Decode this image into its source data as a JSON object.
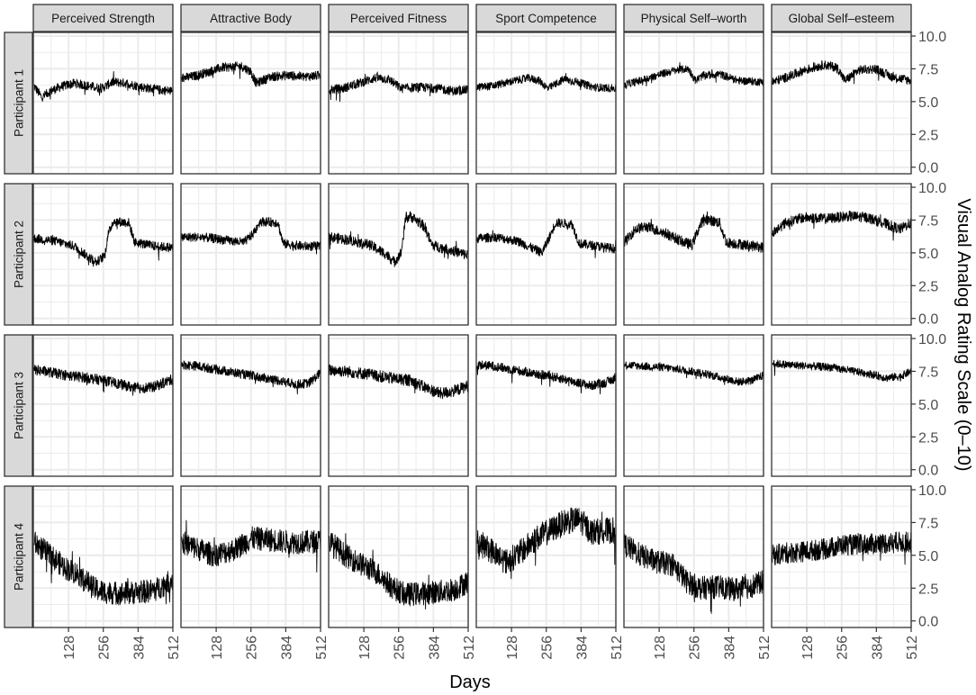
{
  "chart_data": {
    "type": "line",
    "xlabel": "Days",
    "ylabel": "Visual Analog Rating Scale (0–10)",
    "xlim": [
      1,
      512
    ],
    "ylim": [
      0,
      10
    ],
    "x_ticks": [
      "128",
      "256",
      "384",
      "512"
    ],
    "y_ticks": [
      "0.0",
      "2.5",
      "5.0",
      "7.5",
      "10.0"
    ],
    "grid": true,
    "legend": "none",
    "columns": [
      "Perceived Strength",
      "Attractive Body",
      "Perceived Fitness",
      "Sport Competence",
      "Physical Self–worth",
      "Global Self–esteem"
    ],
    "rows": [
      "Participant 1",
      "Participant 2",
      "Participant 3",
      "Participant 4"
    ],
    "line_color": "#000000",
    "strip_fill": "#d9d9d9",
    "grid_color": "#ebebeb",
    "series_note": "Daily ratings; each panel is a series approximated by anchor points (day, value) plus noise amplitude.",
    "panels": [
      {
        "row": "Participant 1",
        "column": "Perceived Strength",
        "noise": 0.35,
        "anchors": [
          [
            1,
            6.2
          ],
          [
            30,
            5.3
          ],
          [
            60,
            5.8
          ],
          [
            110,
            6.2
          ],
          [
            150,
            6.4
          ],
          [
            200,
            6.2
          ],
          [
            250,
            6.0
          ],
          [
            290,
            6.5
          ],
          [
            340,
            6.4
          ],
          [
            400,
            6.1
          ],
          [
            460,
            5.9
          ],
          [
            512,
            5.8
          ]
        ]
      },
      {
        "row": "Participant 1",
        "column": "Attractive Body",
        "noise": 0.35,
        "anchors": [
          [
            1,
            6.8
          ],
          [
            40,
            6.9
          ],
          [
            90,
            7.2
          ],
          [
            150,
            7.6
          ],
          [
            220,
            7.7
          ],
          [
            255,
            7.3
          ],
          [
            275,
            6.4
          ],
          [
            330,
            6.9
          ],
          [
            390,
            7.0
          ],
          [
            450,
            6.9
          ],
          [
            512,
            7.0
          ]
        ]
      },
      {
        "row": "Participant 1",
        "column": "Perceived Fitness",
        "noise": 0.35,
        "anchors": [
          [
            1,
            5.9
          ],
          [
            50,
            6.0
          ],
          [
            110,
            6.4
          ],
          [
            170,
            6.8
          ],
          [
            220,
            6.7
          ],
          [
            265,
            6.0
          ],
          [
            330,
            6.1
          ],
          [
            400,
            6.0
          ],
          [
            460,
            5.8
          ],
          [
            512,
            5.9
          ]
        ]
      },
      {
        "row": "Participant 1",
        "column": "Sport Competence",
        "noise": 0.3,
        "anchors": [
          [
            1,
            6.1
          ],
          [
            60,
            6.2
          ],
          [
            120,
            6.5
          ],
          [
            190,
            6.8
          ],
          [
            230,
            6.6
          ],
          [
            262,
            6.0
          ],
          [
            320,
            6.7
          ],
          [
            370,
            6.5
          ],
          [
            430,
            6.1
          ],
          [
            512,
            6.0
          ]
        ]
      },
      {
        "row": "Participant 1",
        "column": "Physical Self–worth",
        "noise": 0.3,
        "anchors": [
          [
            1,
            6.3
          ],
          [
            60,
            6.6
          ],
          [
            120,
            7.0
          ],
          [
            190,
            7.4
          ],
          [
            235,
            7.5
          ],
          [
            262,
            6.6
          ],
          [
            290,
            7.0
          ],
          [
            350,
            7.1
          ],
          [
            420,
            6.6
          ],
          [
            512,
            6.5
          ]
        ]
      },
      {
        "row": "Participant 1",
        "column": "Global Self–esteem",
        "noise": 0.35,
        "anchors": [
          [
            1,
            6.5
          ],
          [
            60,
            6.9
          ],
          [
            120,
            7.4
          ],
          [
            190,
            7.8
          ],
          [
            240,
            7.6
          ],
          [
            268,
            6.6
          ],
          [
            320,
            7.4
          ],
          [
            380,
            7.5
          ],
          [
            440,
            6.9
          ],
          [
            512,
            6.6
          ]
        ]
      },
      {
        "row": "Participant 2",
        "column": "Perceived Strength",
        "noise": 0.35,
        "anchors": [
          [
            1,
            6.1
          ],
          [
            80,
            5.9
          ],
          [
            150,
            5.5
          ],
          [
            200,
            4.7
          ],
          [
            232,
            4.3
          ],
          [
            262,
            4.8
          ],
          [
            272,
            6.3
          ],
          [
            292,
            7.4
          ],
          [
            350,
            7.3
          ],
          [
            372,
            5.8
          ],
          [
            450,
            5.5
          ],
          [
            512,
            5.4
          ]
        ]
      },
      {
        "row": "Participant 2",
        "column": "Attractive Body",
        "noise": 0.35,
        "anchors": [
          [
            1,
            6.2
          ],
          [
            80,
            6.2
          ],
          [
            150,
            6.0
          ],
          [
            230,
            5.8
          ],
          [
            262,
            6.4
          ],
          [
            290,
            7.4
          ],
          [
            355,
            7.3
          ],
          [
            375,
            5.7
          ],
          [
            450,
            5.5
          ],
          [
            512,
            5.5
          ]
        ]
      },
      {
        "row": "Participant 2",
        "column": "Perceived Fitness",
        "noise": 0.4,
        "anchors": [
          [
            1,
            6.2
          ],
          [
            70,
            6.0
          ],
          [
            150,
            5.6
          ],
          [
            210,
            4.9
          ],
          [
            240,
            4.3
          ],
          [
            265,
            5.0
          ],
          [
            282,
            7.6
          ],
          [
            300,
            7.8
          ],
          [
            352,
            7.0
          ],
          [
            378,
            5.6
          ],
          [
            450,
            5.2
          ],
          [
            512,
            4.8
          ]
        ]
      },
      {
        "row": "Participant 2",
        "column": "Sport Competence",
        "noise": 0.35,
        "anchors": [
          [
            1,
            6.1
          ],
          [
            70,
            6.2
          ],
          [
            150,
            5.9
          ],
          [
            210,
            5.3
          ],
          [
            240,
            5.0
          ],
          [
            268,
            6.2
          ],
          [
            290,
            7.3
          ],
          [
            350,
            7.2
          ],
          [
            378,
            5.7
          ],
          [
            450,
            5.5
          ],
          [
            512,
            5.3
          ]
        ]
      },
      {
        "row": "Participant 2",
        "column": "Physical Self–worth",
        "noise": 0.4,
        "anchors": [
          [
            1,
            5.8
          ],
          [
            40,
            6.8
          ],
          [
            80,
            7.0
          ],
          [
            150,
            6.5
          ],
          [
            220,
            5.8
          ],
          [
            250,
            5.6
          ],
          [
            272,
            6.8
          ],
          [
            292,
            7.6
          ],
          [
            350,
            7.3
          ],
          [
            375,
            5.8
          ],
          [
            450,
            5.6
          ],
          [
            512,
            5.4
          ]
        ]
      },
      {
        "row": "Participant 2",
        "column": "Global Self–esteem",
        "noise": 0.4,
        "anchors": [
          [
            1,
            6.5
          ],
          [
            50,
            7.3
          ],
          [
            120,
            7.7
          ],
          [
            200,
            7.6
          ],
          [
            280,
            7.8
          ],
          [
            350,
            7.7
          ],
          [
            420,
            7.2
          ],
          [
            470,
            6.8
          ],
          [
            512,
            7.3
          ]
        ]
      },
      {
        "row": "Participant 3",
        "column": "Perceived Strength",
        "noise": 0.4,
        "anchors": [
          [
            1,
            7.6
          ],
          [
            40,
            7.5
          ],
          [
            120,
            7.2
          ],
          [
            200,
            7.0
          ],
          [
            260,
            6.8
          ],
          [
            320,
            6.5
          ],
          [
            380,
            6.2
          ],
          [
            440,
            6.3
          ],
          [
            512,
            6.9
          ]
        ]
      },
      {
        "row": "Participant 3",
        "column": "Attractive Body",
        "noise": 0.35,
        "anchors": [
          [
            1,
            8.0
          ],
          [
            60,
            7.9
          ],
          [
            140,
            7.6
          ],
          [
            220,
            7.3
          ],
          [
            300,
            7.0
          ],
          [
            360,
            6.8
          ],
          [
            420,
            6.5
          ],
          [
            470,
            6.6
          ],
          [
            512,
            7.4
          ]
        ]
      },
      {
        "row": "Participant 3",
        "column": "Perceived Fitness",
        "noise": 0.45,
        "anchors": [
          [
            1,
            7.6
          ],
          [
            60,
            7.5
          ],
          [
            140,
            7.3
          ],
          [
            220,
            7.0
          ],
          [
            300,
            6.8
          ],
          [
            360,
            6.2
          ],
          [
            410,
            5.8
          ],
          [
            460,
            6.0
          ],
          [
            512,
            6.4
          ]
        ]
      },
      {
        "row": "Participant 3",
        "column": "Sport Competence",
        "noise": 0.35,
        "anchors": [
          [
            1,
            8.0
          ],
          [
            60,
            7.9
          ],
          [
            140,
            7.6
          ],
          [
            220,
            7.3
          ],
          [
            300,
            7.0
          ],
          [
            360,
            6.7
          ],
          [
            420,
            6.4
          ],
          [
            470,
            6.6
          ],
          [
            512,
            7.0
          ]
        ]
      },
      {
        "row": "Participant 3",
        "column": "Physical Self–worth",
        "noise": 0.3,
        "anchors": [
          [
            1,
            8.0
          ],
          [
            60,
            7.9
          ],
          [
            140,
            7.8
          ],
          [
            220,
            7.6
          ],
          [
            300,
            7.3
          ],
          [
            360,
            7.0
          ],
          [
            420,
            6.7
          ],
          [
            470,
            6.8
          ],
          [
            512,
            7.2
          ]
        ]
      },
      {
        "row": "Participant 3",
        "column": "Global Self–esteem",
        "noise": 0.3,
        "anchors": [
          [
            1,
            8.1
          ],
          [
            60,
            8.0
          ],
          [
            140,
            7.9
          ],
          [
            220,
            7.8
          ],
          [
            300,
            7.5
          ],
          [
            360,
            7.3
          ],
          [
            420,
            7.0
          ],
          [
            470,
            7.1
          ],
          [
            512,
            7.5
          ]
        ]
      },
      {
        "row": "Participant 4",
        "column": "Perceived Strength",
        "noise": 0.9,
        "anchors": [
          [
            1,
            6.0
          ],
          [
            60,
            5.0
          ],
          [
            120,
            4.0
          ],
          [
            170,
            3.5
          ],
          [
            220,
            2.5
          ],
          [
            260,
            2.2
          ],
          [
            320,
            2.1
          ],
          [
            400,
            2.2
          ],
          [
            450,
            2.4
          ],
          [
            512,
            3.2
          ]
        ]
      },
      {
        "row": "Participant 4",
        "column": "Attractive Body",
        "noise": 0.9,
        "anchors": [
          [
            1,
            6.0
          ],
          [
            60,
            5.5
          ],
          [
            120,
            5.0
          ],
          [
            200,
            5.5
          ],
          [
            260,
            6.3
          ],
          [
            320,
            6.2
          ],
          [
            400,
            6.0
          ],
          [
            460,
            6.0
          ],
          [
            512,
            6.1
          ]
        ]
      },
      {
        "row": "Participant 4",
        "column": "Perceived Fitness",
        "noise": 0.9,
        "anchors": [
          [
            1,
            6.1
          ],
          [
            60,
            5.0
          ],
          [
            120,
            4.3
          ],
          [
            180,
            3.6
          ],
          [
            230,
            2.6
          ],
          [
            280,
            2.0
          ],
          [
            340,
            2.1
          ],
          [
            400,
            2.2
          ],
          [
            460,
            2.4
          ],
          [
            512,
            3.0
          ]
        ]
      },
      {
        "row": "Participant 4",
        "column": "Sport Competence",
        "noise": 1.0,
        "anchors": [
          [
            1,
            6.0
          ],
          [
            60,
            5.3
          ],
          [
            110,
            4.5
          ],
          [
            160,
            5.2
          ],
          [
            220,
            6.3
          ],
          [
            280,
            7.0
          ],
          [
            330,
            7.6
          ],
          [
            380,
            7.7
          ],
          [
            420,
            6.8
          ],
          [
            512,
            6.9
          ]
        ]
      },
      {
        "row": "Participant 4",
        "column": "Physical Self–worth",
        "noise": 0.9,
        "anchors": [
          [
            1,
            5.8
          ],
          [
            60,
            5.0
          ],
          [
            120,
            4.5
          ],
          [
            180,
            4.3
          ],
          [
            230,
            3.0
          ],
          [
            280,
            2.5
          ],
          [
            340,
            2.6
          ],
          [
            400,
            2.4
          ],
          [
            460,
            2.6
          ],
          [
            512,
            3.0
          ]
        ]
      },
      {
        "row": "Participant 4",
        "column": "Global Self–esteem",
        "noise": 0.8,
        "anchors": [
          [
            1,
            5.0
          ],
          [
            60,
            5.2
          ],
          [
            120,
            5.3
          ],
          [
            200,
            5.5
          ],
          [
            260,
            5.8
          ],
          [
            320,
            5.8
          ],
          [
            400,
            5.9
          ],
          [
            460,
            6.0
          ],
          [
            512,
            6.0
          ]
        ]
      }
    ]
  }
}
